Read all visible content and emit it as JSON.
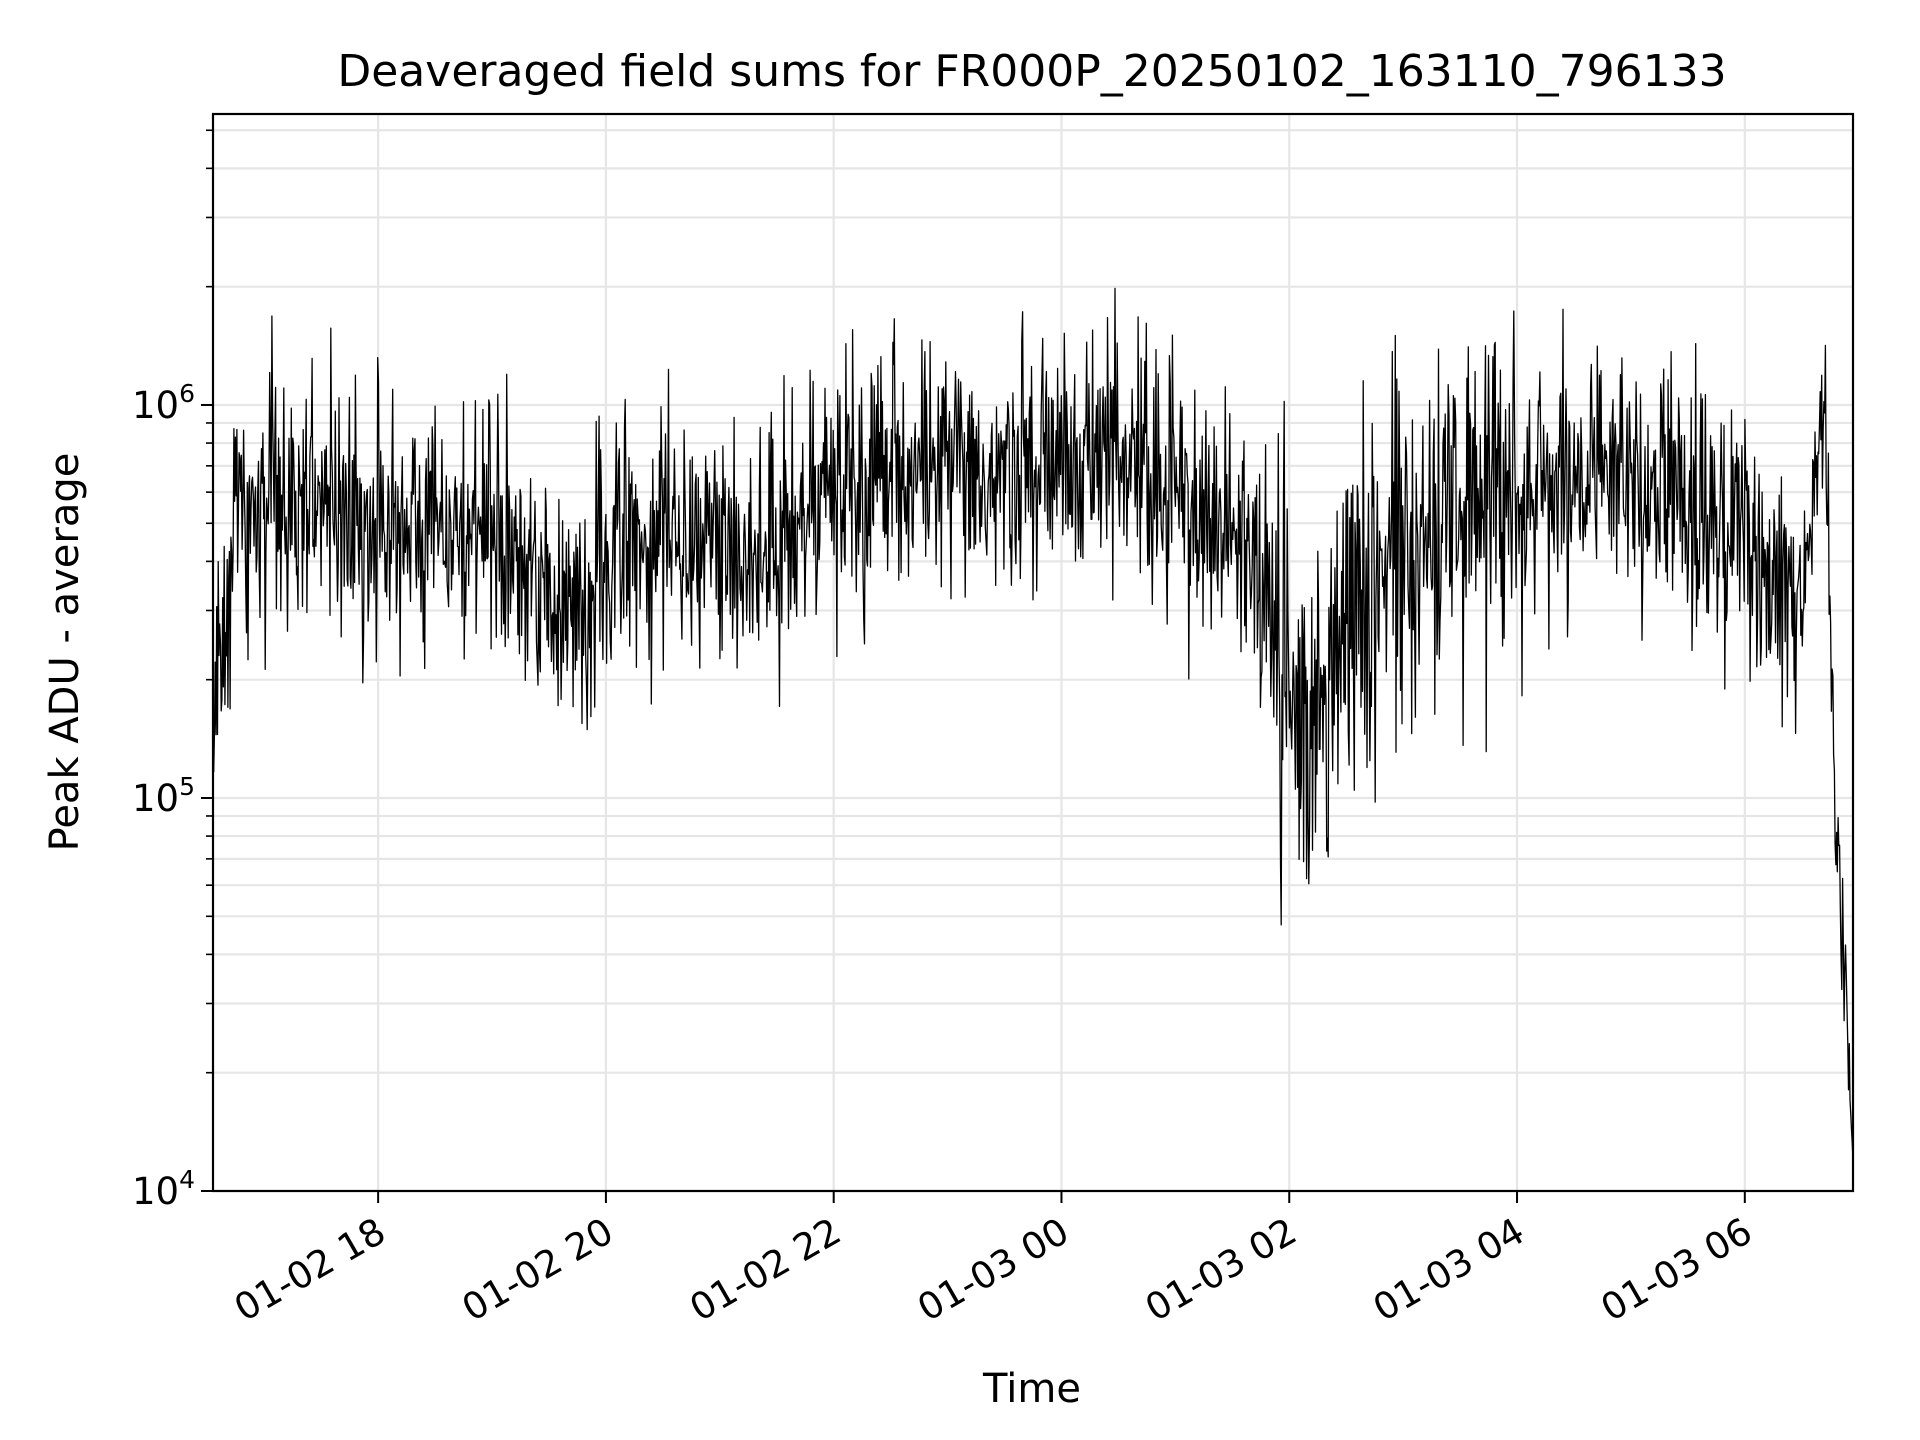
{
  "chart_data": {
    "type": "line",
    "title": "Deaveraged field sums for FR000P_20250102_163110_796133",
    "xlabel": "Time",
    "ylabel": "Peak ADU - average",
    "yscale": "log",
    "ylim": [
      10000,
      5500000
    ],
    "xlim": [
      "2025-01-02 16:33",
      "2025-01-03 06:57"
    ],
    "grid": true,
    "line_color": "#000000",
    "x_ticks": [
      {
        "x": "2025-01-02 18:00",
        "label": "01-02 18"
      },
      {
        "x": "2025-01-02 20:00",
        "label": "01-02 20"
      },
      {
        "x": "2025-01-02 22:00",
        "label": "01-02 22"
      },
      {
        "x": "2025-01-03 00:00",
        "label": "01-03 00"
      },
      {
        "x": "2025-01-03 02:00",
        "label": "01-03 02"
      },
      {
        "x": "2025-01-03 04:00",
        "label": "01-03 04"
      },
      {
        "x": "2025-01-03 06:00",
        "label": "01-03 06"
      }
    ],
    "y_ticks": [
      {
        "y": 10000,
        "base": "10",
        "exp": "4"
      },
      {
        "y": 100000,
        "base": "10",
        "exp": "5"
      },
      {
        "y": 1000000,
        "base": "10",
        "exp": "6"
      }
    ],
    "series": [
      {
        "x": [
          "2025-01-02 16:33",
          "2025-01-02 16:45",
          "2025-01-02 17:00",
          "2025-01-02 17:15",
          "2025-01-02 17:30",
          "2025-01-02 17:45",
          "2025-01-02 17:55",
          "2025-01-02 18:00",
          "2025-01-02 18:15",
          "2025-01-02 18:30",
          "2025-01-02 18:45",
          "2025-01-02 19:00",
          "2025-01-02 19:20",
          "2025-01-02 19:40",
          "2025-01-02 19:50",
          "2025-01-02 20:00",
          "2025-01-02 20:30",
          "2025-01-02 21:00",
          "2025-01-02 21:20",
          "2025-01-02 21:40",
          "2025-01-02 22:00",
          "2025-01-02 22:20",
          "2025-01-02 22:40",
          "2025-01-02 23:00",
          "2025-01-02 23:20",
          "2025-01-02 23:40",
          "2025-01-03 00:00",
          "2025-01-03 00:30",
          "2025-01-03 00:45",
          "2025-01-03 01:00",
          "2025-01-03 01:30",
          "2025-01-03 01:50",
          "2025-01-03 02:05",
          "2025-01-03 02:15",
          "2025-01-03 02:40",
          "2025-01-03 03:00",
          "2025-01-03 03:20",
          "2025-01-03 03:40",
          "2025-01-03 04:00",
          "2025-01-03 04:30",
          "2025-01-03 05:00",
          "2025-01-03 05:15",
          "2025-01-03 05:40",
          "2025-01-03 06:00",
          "2025-01-03 06:15",
          "2025-01-03 06:30",
          "2025-01-03 06:42",
          "2025-01-03 06:48",
          "2025-01-03 06:57"
        ],
        "y": [
          130000,
          600000,
          500000,
          550000,
          650000,
          500000,
          450000,
          500000,
          480000,
          550000,
          450000,
          500000,
          350000,
          300000,
          250000,
          450000,
          480000,
          500000,
          400000,
          500000,
          600000,
          650000,
          700000,
          650000,
          600000,
          650000,
          700000,
          750000,
          700000,
          600000,
          500000,
          300000,
          150000,
          180000,
          350000,
          400000,
          500000,
          600000,
          600000,
          650000,
          600000,
          650000,
          550000,
          450000,
          350000,
          300000,
          1000000,
          90000,
          12000
        ]
      }
    ]
  }
}
